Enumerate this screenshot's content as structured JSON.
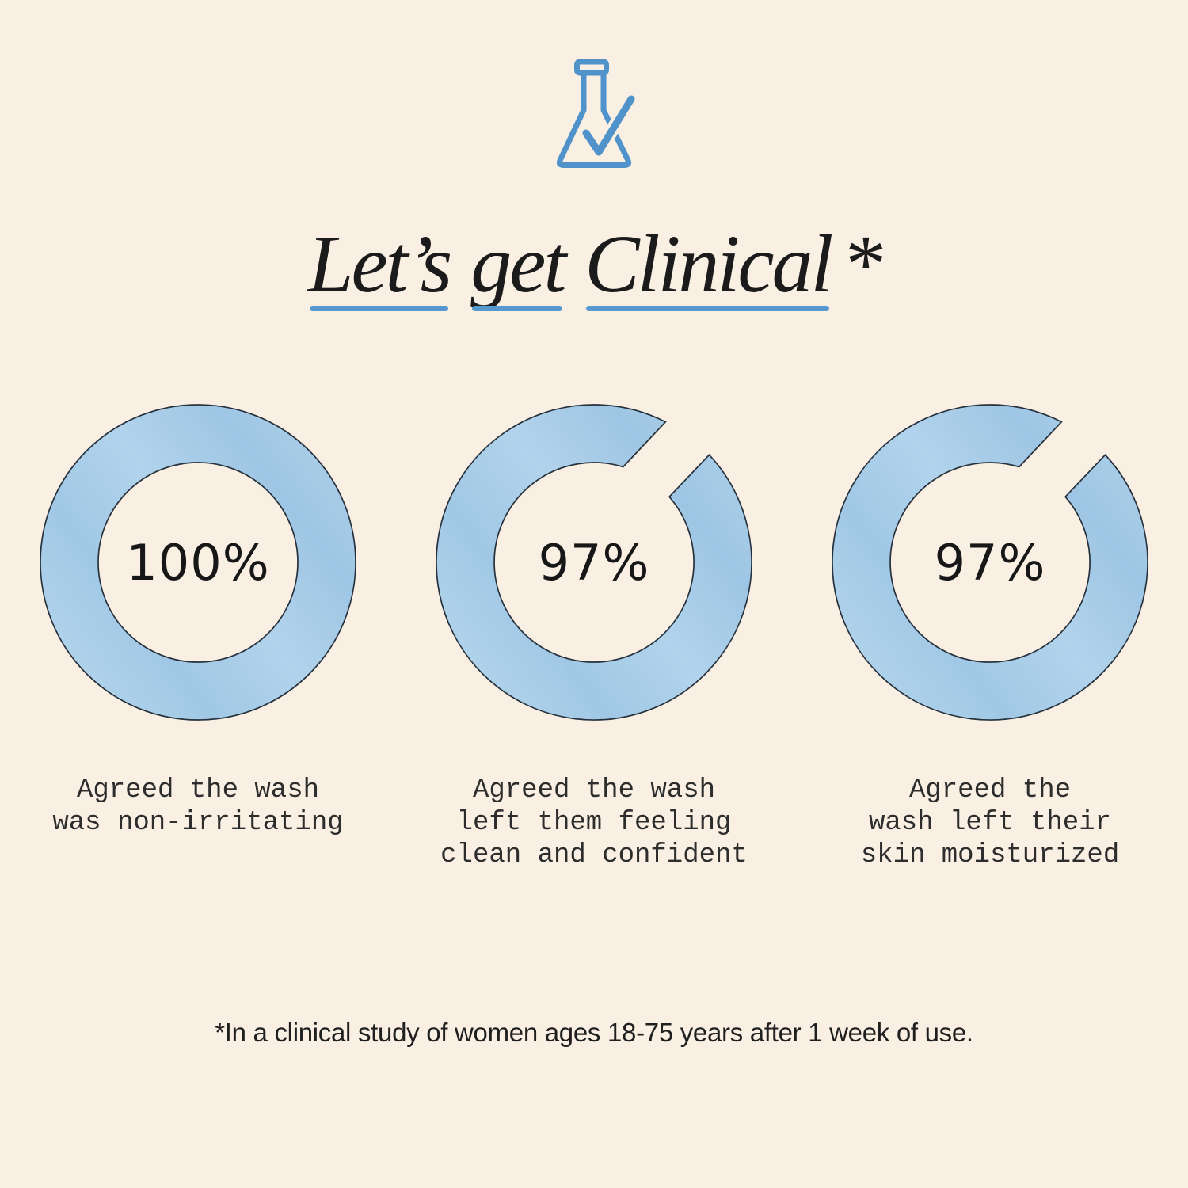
{
  "page": {
    "background": "#f9efe3"
  },
  "colors": {
    "accent_blue": "#4f93ca",
    "underline_blue": "#5599cf",
    "ring_fill_base": "#a9cde8",
    "ring_fill_light": "#bad8ef",
    "ring_outline": "#26313c",
    "text_dark": "#1b1b1b"
  },
  "header": {
    "icon": "flask-check-icon",
    "title_full": "Let’s get Clinical*",
    "title_words": [
      {
        "text": "Let’s",
        "underlined": true
      },
      {
        "text": "get",
        "underlined": true
      },
      {
        "text": "Clinical",
        "underlined": true
      },
      {
        "text": "*",
        "underlined": false
      }
    ]
  },
  "stats": [
    {
      "value_label": "100%",
      "percent": 100,
      "caption_lines": [
        "Agreed the wash",
        "was non-irritating"
      ]
    },
    {
      "value_label": "97%",
      "percent": 97,
      "caption_lines": [
        "Agreed the wash",
        "left them feeling",
        "clean and confident"
      ]
    },
    {
      "value_label": "97%",
      "percent": 97,
      "caption_lines": [
        "Agreed the",
        "wash left their",
        "skin moisturized"
      ]
    }
  ],
  "footnote": {
    "text": "*In a clinical study of women ages 18-75 years after 1 week of use."
  },
  "chart_data": {
    "type": "pie",
    "subtype": "donut",
    "title": "Let’s get Clinical*",
    "series": [
      {
        "label": "Agreed the wash was non-irritating",
        "value": 100,
        "unit": "%"
      },
      {
        "label": "Agreed the wash left them feeling clean and confident",
        "value": 97,
        "unit": "%"
      },
      {
        "label": "Agreed the wash left their skin moisturized",
        "value": 97,
        "unit": "%"
      }
    ],
    "value_labels": [
      "100%",
      "97%",
      "97%"
    ],
    "footnote": "*In a clinical study of women ages 18-75 years after 1 week of use.",
    "layout": "three donut gauges in a row, value centered in each ring"
  }
}
